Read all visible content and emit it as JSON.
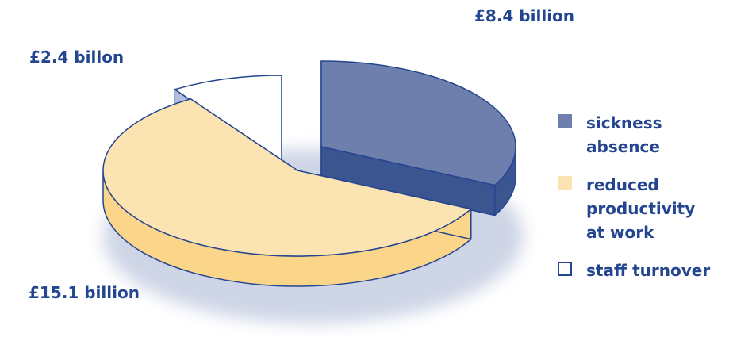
{
  "chart_data": {
    "type": "pie",
    "labels": [
      {
        "slice": "sickness absence",
        "text": "£8.4 billion"
      },
      {
        "slice": "reduced productivity at work",
        "text": "£15.1 billion"
      },
      {
        "slice": "staff turnover",
        "text": "£2.4 billon"
      }
    ],
    "slices": [
      {
        "name": "sickness absence",
        "value": 8.4,
        "color": "#6f7fad",
        "side_color": "#3b5590"
      },
      {
        "name": "reduced productivity at work",
        "value": 15.1,
        "color": "#fce3b2",
        "side_color": "#fbd589"
      },
      {
        "name": "staff turnover",
        "value": 2.4,
        "color": "#ffffff",
        "side_color": "#b3bedb"
      }
    ],
    "legend": {
      "placement": "right",
      "items": [
        {
          "label": "sickness absence",
          "color": "#6f7fad"
        },
        {
          "label": "reduced productivity at work",
          "color": "#fce3b2"
        },
        {
          "label": "staff turnover",
          "color": "#ffffff"
        }
      ]
    },
    "outline_color": "#24458f",
    "label_color": "#24458f"
  }
}
